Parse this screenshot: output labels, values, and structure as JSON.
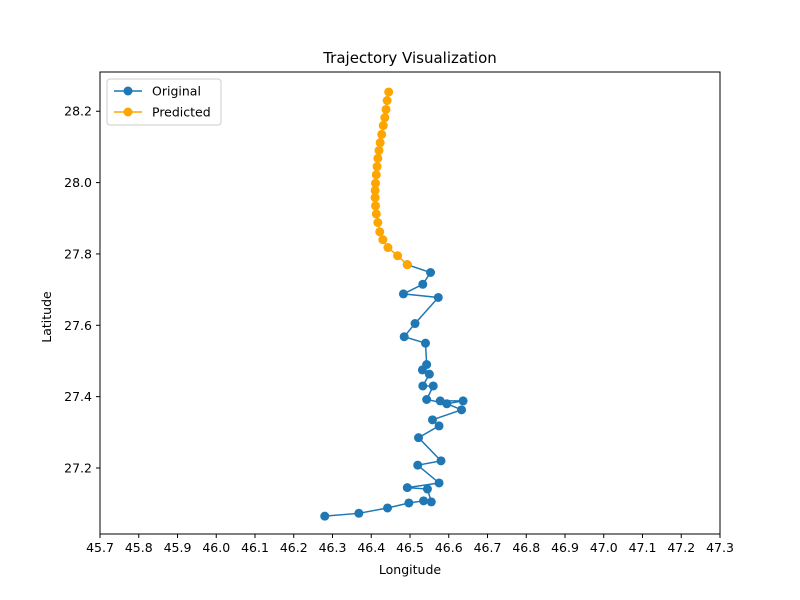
{
  "chart_data": {
    "type": "line",
    "title": "Trajectory Visualization",
    "xlabel": "Longitude",
    "ylabel": "Latitude",
    "xlim": [
      45.7,
      47.3
    ],
    "ylim": [
      27.015,
      28.31
    ],
    "xticks": [
      "45.7",
      "45.8",
      "45.9",
      "46.0",
      "46.1",
      "46.2",
      "46.3",
      "46.4",
      "46.5",
      "46.6",
      "46.7",
      "46.8",
      "46.9",
      "47.0",
      "47.1",
      "47.2",
      "47.3"
    ],
    "yticks": [
      "27.2",
      "27.4",
      "27.6",
      "27.8",
      "28.0",
      "28.2"
    ],
    "grid": false,
    "legend_position": "top-left",
    "series": [
      {
        "name": "Original",
        "color": "#1f77b4",
        "marker": "circle",
        "points": [
          [
            46.28,
            27.065
          ],
          [
            46.368,
            27.073
          ],
          [
            46.442,
            27.088
          ],
          [
            46.497,
            27.102
          ],
          [
            46.535,
            27.108
          ],
          [
            46.555,
            27.105
          ],
          [
            46.545,
            27.141
          ],
          [
            46.493,
            27.145
          ],
          [
            46.575,
            27.158
          ],
          [
            46.52,
            27.208
          ],
          [
            46.58,
            27.22
          ],
          [
            46.522,
            27.285
          ],
          [
            46.575,
            27.318
          ],
          [
            46.558,
            27.335
          ],
          [
            46.633,
            27.363
          ],
          [
            46.578,
            27.388
          ],
          [
            46.637,
            27.388
          ],
          [
            46.595,
            27.38
          ],
          [
            46.543,
            27.392
          ],
          [
            46.56,
            27.43
          ],
          [
            46.533,
            27.43
          ],
          [
            46.55,
            27.463
          ],
          [
            46.532,
            27.475
          ],
          [
            46.543,
            27.49
          ],
          [
            46.54,
            27.55
          ],
          [
            46.485,
            27.568
          ],
          [
            46.513,
            27.605
          ],
          [
            46.573,
            27.678
          ],
          [
            46.483,
            27.688
          ],
          [
            46.533,
            27.715
          ],
          [
            46.553,
            27.748
          ],
          [
            46.493,
            27.77
          ]
        ]
      },
      {
        "name": "Predicted",
        "color": "#ffa500",
        "marker": "circle",
        "points": [
          [
            46.493,
            27.77
          ],
          [
            46.468,
            27.795
          ],
          [
            46.443,
            27.818
          ],
          [
            46.43,
            27.84
          ],
          [
            46.422,
            27.862
          ],
          [
            46.417,
            27.888
          ],
          [
            46.413,
            27.912
          ],
          [
            46.411,
            27.935
          ],
          [
            46.41,
            27.958
          ],
          [
            46.41,
            27.978
          ],
          [
            46.411,
            27.998
          ],
          [
            46.413,
            28.022
          ],
          [
            46.415,
            28.045
          ],
          [
            46.417,
            28.068
          ],
          [
            46.42,
            28.09
          ],
          [
            46.423,
            28.112
          ],
          [
            46.427,
            28.135
          ],
          [
            46.431,
            28.16
          ],
          [
            46.435,
            28.182
          ],
          [
            46.438,
            28.205
          ],
          [
            46.441,
            28.23
          ],
          [
            46.445,
            28.254
          ]
        ]
      }
    ]
  }
}
